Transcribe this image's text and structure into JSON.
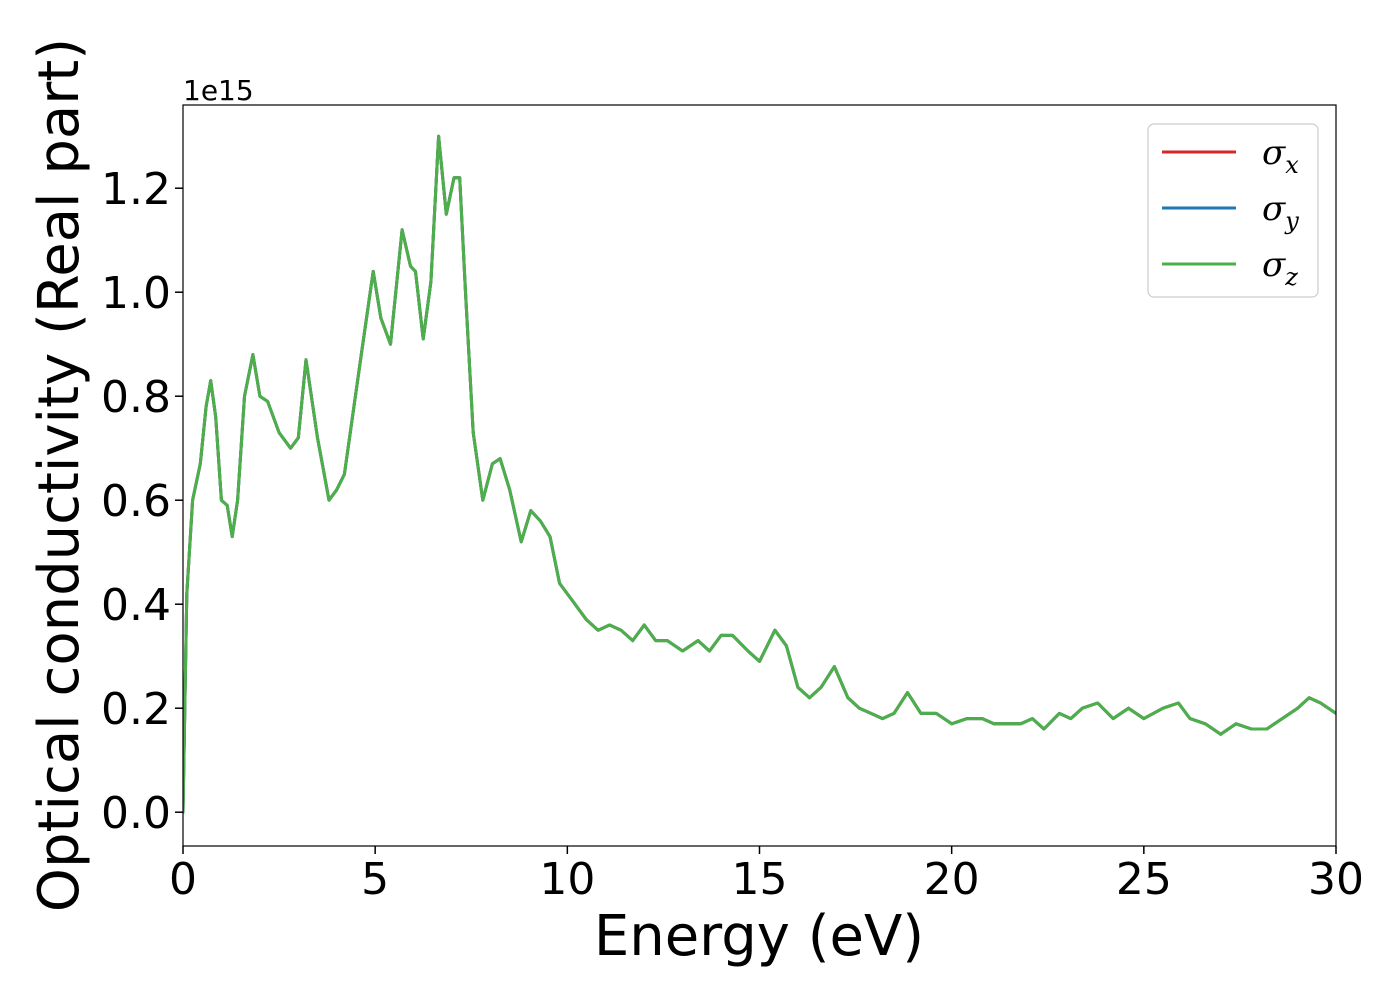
{
  "chart_data": {
    "type": "line",
    "xlabel": "Energy (eV)",
    "ylabel": "Optical conductivity (Real part)",
    "y_offset_text": "1e15",
    "xlim": [
      0,
      30
    ],
    "ylim": [
      -0.065,
      1.36
    ],
    "xticks": [
      0,
      5,
      10,
      15,
      20,
      25,
      30
    ],
    "xtick_labels": [
      "0",
      "5",
      "10",
      "15",
      "20",
      "25",
      "30"
    ],
    "yticks": [
      0.0,
      0.2,
      0.4,
      0.6,
      0.8,
      1.0,
      1.2
    ],
    "ytick_labels": [
      "0.0",
      "0.2",
      "0.4",
      "0.6",
      "0.8",
      "1.0",
      "1.2"
    ],
    "grid": false,
    "legend_position": "top-right",
    "x": [
      0,
      0.1,
      0.25,
      0.45,
      0.6,
      0.72,
      0.85,
      1.0,
      1.15,
      1.28,
      1.42,
      1.6,
      1.82,
      2.0,
      2.2,
      2.5,
      2.8,
      3.0,
      3.2,
      3.5,
      3.8,
      4.0,
      4.2,
      4.6,
      4.95,
      5.15,
      5.4,
      5.7,
      5.92,
      6.05,
      6.25,
      6.45,
      6.65,
      6.85,
      7.05,
      7.2,
      7.35,
      7.55,
      7.8,
      8.05,
      8.25,
      8.5,
      8.8,
      9.05,
      9.3,
      9.55,
      9.8,
      10.1,
      10.5,
      10.8,
      11.1,
      11.4,
      11.7,
      12.0,
      12.3,
      12.6,
      13.0,
      13.4,
      13.7,
      14.0,
      14.3,
      14.7,
      15.0,
      15.4,
      15.7,
      16.0,
      16.3,
      16.6,
      16.95,
      17.3,
      17.6,
      17.9,
      18.2,
      18.5,
      18.85,
      19.2,
      19.6,
      20.0,
      20.4,
      20.8,
      21.1,
      21.4,
      21.8,
      22.1,
      22.4,
      22.8,
      23.1,
      23.4,
      23.8,
      24.2,
      24.6,
      25.0,
      25.5,
      25.9,
      26.2,
      26.6,
      27.0,
      27.4,
      27.8,
      28.2,
      28.6,
      29.0,
      29.3,
      29.6,
      30.0
    ],
    "series": [
      {
        "name": "σx",
        "color": "#d62728",
        "values": [
          0.0,
          0.42,
          0.6,
          0.67,
          0.78,
          0.83,
          0.76,
          0.6,
          0.59,
          0.53,
          0.6,
          0.8,
          0.88,
          0.8,
          0.79,
          0.73,
          0.7,
          0.72,
          0.87,
          0.72,
          0.6,
          0.62,
          0.65,
          0.86,
          1.04,
          0.95,
          0.9,
          1.12,
          1.05,
          1.04,
          0.91,
          1.02,
          1.3,
          1.15,
          1.22,
          1.22,
          1.0,
          0.73,
          0.6,
          0.67,
          0.68,
          0.62,
          0.52,
          0.58,
          0.56,
          0.53,
          0.44,
          0.41,
          0.37,
          0.35,
          0.36,
          0.35,
          0.33,
          0.36,
          0.33,
          0.33,
          0.31,
          0.33,
          0.31,
          0.34,
          0.34,
          0.31,
          0.29,
          0.35,
          0.32,
          0.24,
          0.22,
          0.24,
          0.28,
          0.22,
          0.2,
          0.19,
          0.18,
          0.19,
          0.23,
          0.19,
          0.19,
          0.17,
          0.18,
          0.18,
          0.17,
          0.17,
          0.17,
          0.18,
          0.16,
          0.19,
          0.18,
          0.2,
          0.21,
          0.18,
          0.2,
          0.18,
          0.2,
          0.21,
          0.18,
          0.17,
          0.15,
          0.17,
          0.16,
          0.16,
          0.18,
          0.2,
          0.22,
          0.21,
          0.19
        ]
      },
      {
        "name": "σy",
        "color": "#1f77b4",
        "values": [
          0.0,
          0.42,
          0.6,
          0.67,
          0.78,
          0.83,
          0.76,
          0.6,
          0.59,
          0.53,
          0.6,
          0.8,
          0.88,
          0.8,
          0.79,
          0.73,
          0.7,
          0.72,
          0.87,
          0.72,
          0.6,
          0.62,
          0.65,
          0.86,
          1.04,
          0.95,
          0.9,
          1.12,
          1.05,
          1.04,
          0.91,
          1.02,
          1.3,
          1.15,
          1.22,
          1.22,
          1.0,
          0.73,
          0.6,
          0.67,
          0.68,
          0.62,
          0.52,
          0.58,
          0.56,
          0.53,
          0.44,
          0.41,
          0.37,
          0.35,
          0.36,
          0.35,
          0.33,
          0.36,
          0.33,
          0.33,
          0.31,
          0.33,
          0.31,
          0.34,
          0.34,
          0.31,
          0.29,
          0.35,
          0.32,
          0.24,
          0.22,
          0.24,
          0.28,
          0.22,
          0.2,
          0.19,
          0.18,
          0.19,
          0.23,
          0.19,
          0.19,
          0.17,
          0.18,
          0.18,
          0.17,
          0.17,
          0.17,
          0.18,
          0.16,
          0.19,
          0.18,
          0.2,
          0.21,
          0.18,
          0.2,
          0.18,
          0.2,
          0.21,
          0.18,
          0.17,
          0.15,
          0.17,
          0.16,
          0.16,
          0.18,
          0.2,
          0.22,
          0.21,
          0.19
        ]
      },
      {
        "name": "σz",
        "color": "#4daf4a",
        "values": [
          0.0,
          0.42,
          0.6,
          0.67,
          0.78,
          0.83,
          0.76,
          0.6,
          0.59,
          0.53,
          0.6,
          0.8,
          0.88,
          0.8,
          0.79,
          0.73,
          0.7,
          0.72,
          0.87,
          0.72,
          0.6,
          0.62,
          0.65,
          0.86,
          1.04,
          0.95,
          0.9,
          1.12,
          1.05,
          1.04,
          0.91,
          1.02,
          1.3,
          1.15,
          1.22,
          1.22,
          1.0,
          0.73,
          0.6,
          0.67,
          0.68,
          0.62,
          0.52,
          0.58,
          0.56,
          0.53,
          0.44,
          0.41,
          0.37,
          0.35,
          0.36,
          0.35,
          0.33,
          0.36,
          0.33,
          0.33,
          0.31,
          0.33,
          0.31,
          0.34,
          0.34,
          0.31,
          0.29,
          0.35,
          0.32,
          0.24,
          0.22,
          0.24,
          0.28,
          0.22,
          0.2,
          0.19,
          0.18,
          0.19,
          0.23,
          0.19,
          0.19,
          0.17,
          0.18,
          0.18,
          0.17,
          0.17,
          0.17,
          0.18,
          0.16,
          0.19,
          0.18,
          0.2,
          0.21,
          0.18,
          0.2,
          0.18,
          0.2,
          0.21,
          0.18,
          0.17,
          0.15,
          0.17,
          0.16,
          0.16,
          0.18,
          0.2,
          0.22,
          0.21,
          0.19
        ]
      }
    ],
    "legend": [
      {
        "symbol": "σ",
        "sub": "x",
        "color": "#d62728"
      },
      {
        "symbol": "σ",
        "sub": "y",
        "color": "#1f77b4"
      },
      {
        "symbol": "σ",
        "sub": "z",
        "color": "#4daf4a"
      }
    ]
  }
}
